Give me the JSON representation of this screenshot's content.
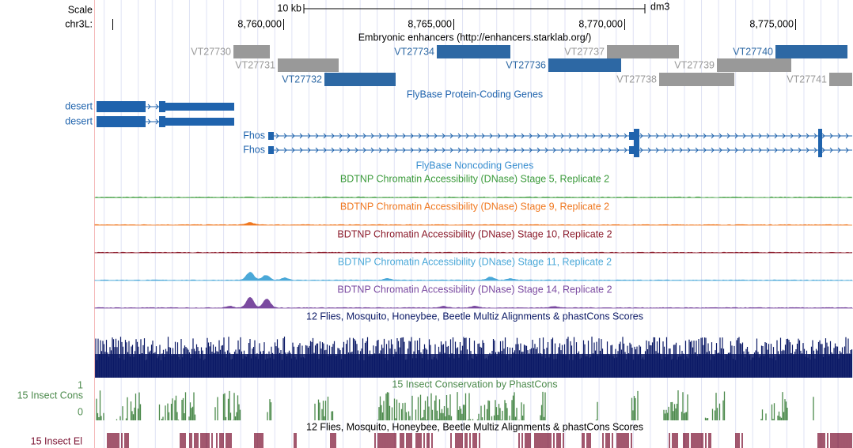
{
  "header": {
    "scale": "Scale",
    "scale_bar": "10 kb",
    "assembly": "dm3",
    "chrom": "chr3L:",
    "positions": [
      "8,760,000",
      "8,765,000",
      "8,770,000",
      "8,775,000"
    ]
  },
  "tracks": {
    "enhancers": {
      "title": "Embryonic enhancers (http://enhancers.starklab.org/)",
      "items": [
        {
          "label": "VT27730",
          "color": "#999999"
        },
        {
          "label": "VT27731",
          "color": "#999999"
        },
        {
          "label": "VT27732",
          "color": "#2d68a4"
        },
        {
          "label": "VT27734",
          "color": "#2d68a4"
        },
        {
          "label": "VT27736",
          "color": "#2d68a4"
        },
        {
          "label": "VT27737",
          "color": "#999999"
        },
        {
          "label": "VT27738",
          "color": "#999999"
        },
        {
          "label": "VT27739",
          "color": "#999999"
        },
        {
          "label": "VT27740",
          "color": "#2d68a4"
        },
        {
          "label": "VT27741",
          "color": "#999999"
        }
      ]
    },
    "protein_genes": {
      "title": "FlyBase Protein-Coding Genes",
      "color": "#1f63ad",
      "genes": [
        "desert",
        "desert",
        "Fhos",
        "Fhos"
      ]
    },
    "noncoding_genes": {
      "title": "FlyBase Noncoding Genes",
      "color": "#3a8fd0"
    },
    "dnase": [
      {
        "title": "BDTNP Chromatin Accessibility (DNase) Stage 5, Replicate 2",
        "color": "#3a9a3a"
      },
      {
        "title": "BDTNP Chromatin Accessibility (DNase) Stage 9, Replicate 2",
        "color": "#f07820"
      },
      {
        "title": "BDTNP Chromatin Accessibility (DNase) Stage 10, Replicate 2",
        "color": "#8b1a2a"
      },
      {
        "title": "BDTNP Chromatin Accessibility (DNase) Stage 11, Replicate 2",
        "color": "#4aa8d8"
      },
      {
        "title": "BDTNP Chromatin Accessibility (DNase) Stage 14, Replicate 2",
        "color": "#7a4aa0"
      }
    ],
    "multiz": {
      "title": "12 Flies, Mosquito, Honeybee, Beetle Multiz Alignments & phastCons Scores",
      "color": "#0c1a66"
    },
    "conservation": {
      "title": "15 Insect Conservation by PhastCons",
      "label": "15 Insect Cons",
      "max": 1,
      "min": 0,
      "color": "#4c8a4c"
    },
    "elements": {
      "title": "12 Flies, Mosquito, Honeybee, Beetle Multiz Alignments & phastCons Scores",
      "label": "15 Insect El",
      "color": "#7a1030"
    }
  }
}
